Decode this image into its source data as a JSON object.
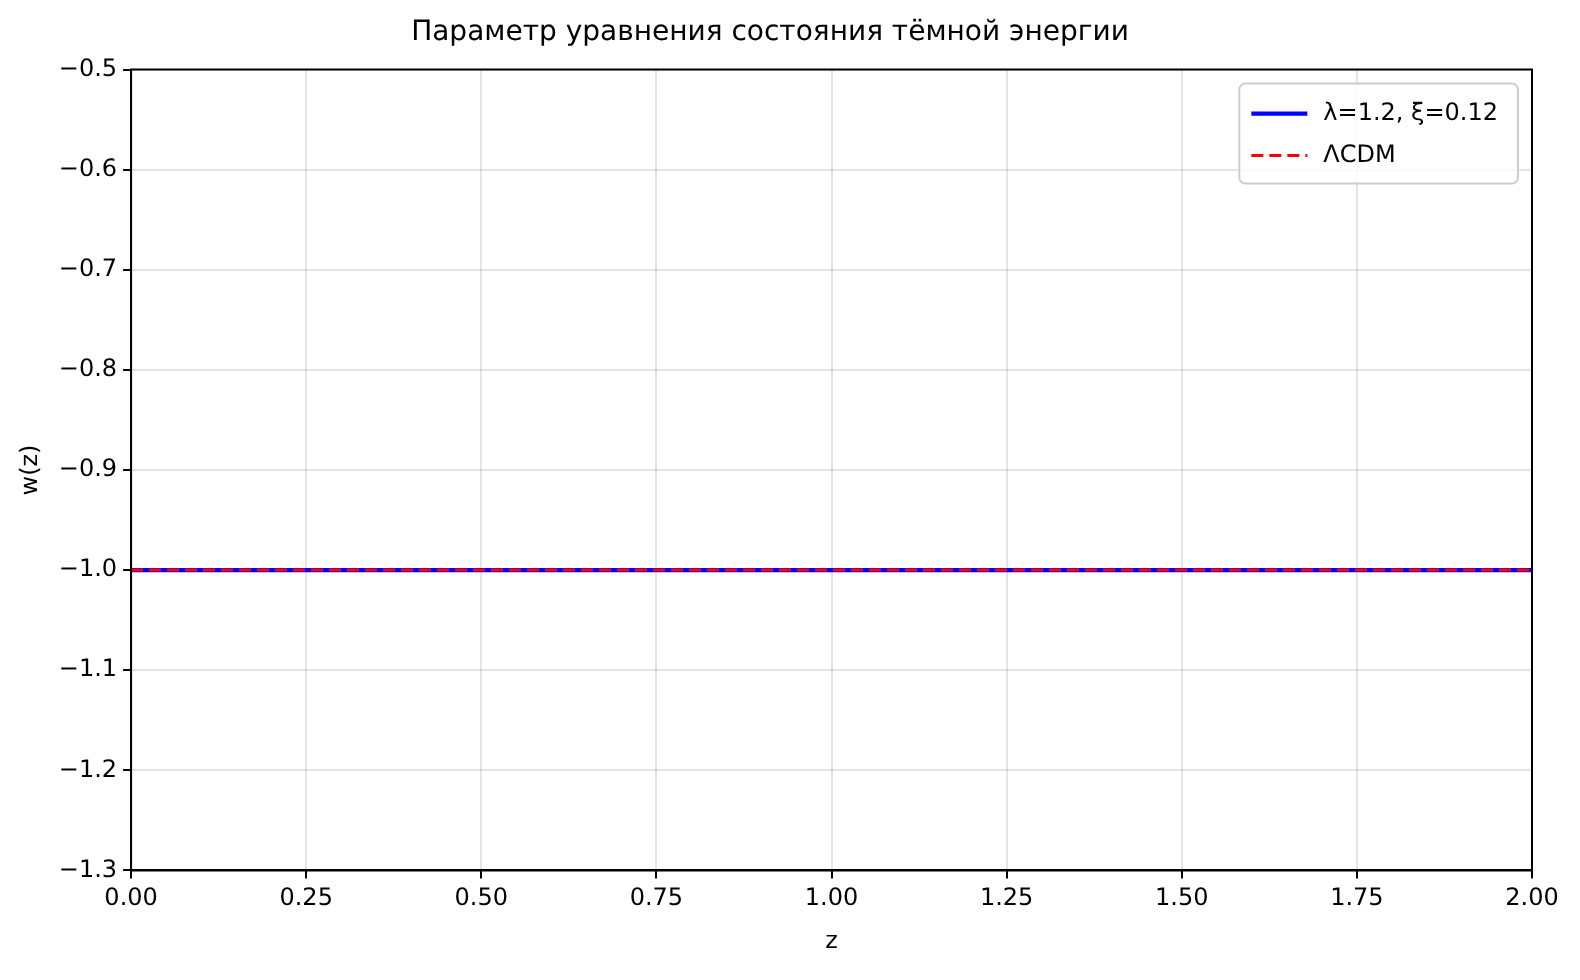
{
  "chart_data": {
    "type": "line",
    "title": "Параметр уравнения состояния тёмной энергии",
    "xlabel": "z",
    "ylabel": "w(z)",
    "x": [
      0,
      2
    ],
    "series": [
      {
        "name": "λ=1.2, ξ=0.12",
        "color": "#0000ff",
        "values": [
          -1.0,
          -1.0
        ],
        "line_style": "solid"
      },
      {
        "name": "ΛCDM",
        "color": "#ff0000",
        "values": [
          -1.0,
          -1.0
        ],
        "line_style": "dashed"
      }
    ],
    "xlim": [
      0,
      2
    ],
    "xticks": [
      {
        "value": 0,
        "label": "0.00"
      },
      {
        "value": 0.25,
        "label": "0.25"
      },
      {
        "value": 0.5,
        "label": "0.50"
      },
      {
        "value": 0.75,
        "label": "0.75"
      },
      {
        "value": 1,
        "label": "1.00"
      },
      {
        "value": 1.25,
        "label": "1.25"
      },
      {
        "value": 1.5,
        "label": "1.50"
      },
      {
        "value": 1.75,
        "label": "1.75"
      },
      {
        "value": 2,
        "label": "2.00"
      }
    ],
    "ylim": [
      -1.3,
      -0.5
    ],
    "yticks": [
      {
        "value": -1.3,
        "label": "−1.3"
      },
      {
        "value": -1.2,
        "label": "−1.2"
      },
      {
        "value": -1.1,
        "label": "−1.1"
      },
      {
        "value": -1.0,
        "label": "−1.0"
      },
      {
        "value": -0.9,
        "label": "−0.9"
      },
      {
        "value": -0.8,
        "label": "−0.8"
      },
      {
        "value": -0.7,
        "label": "−0.7"
      },
      {
        "value": -0.6,
        "label": "−0.6"
      },
      {
        "value": -0.5,
        "label": "−0.5"
      }
    ],
    "grid": true,
    "legend": "top right",
    "marker": "none"
  }
}
